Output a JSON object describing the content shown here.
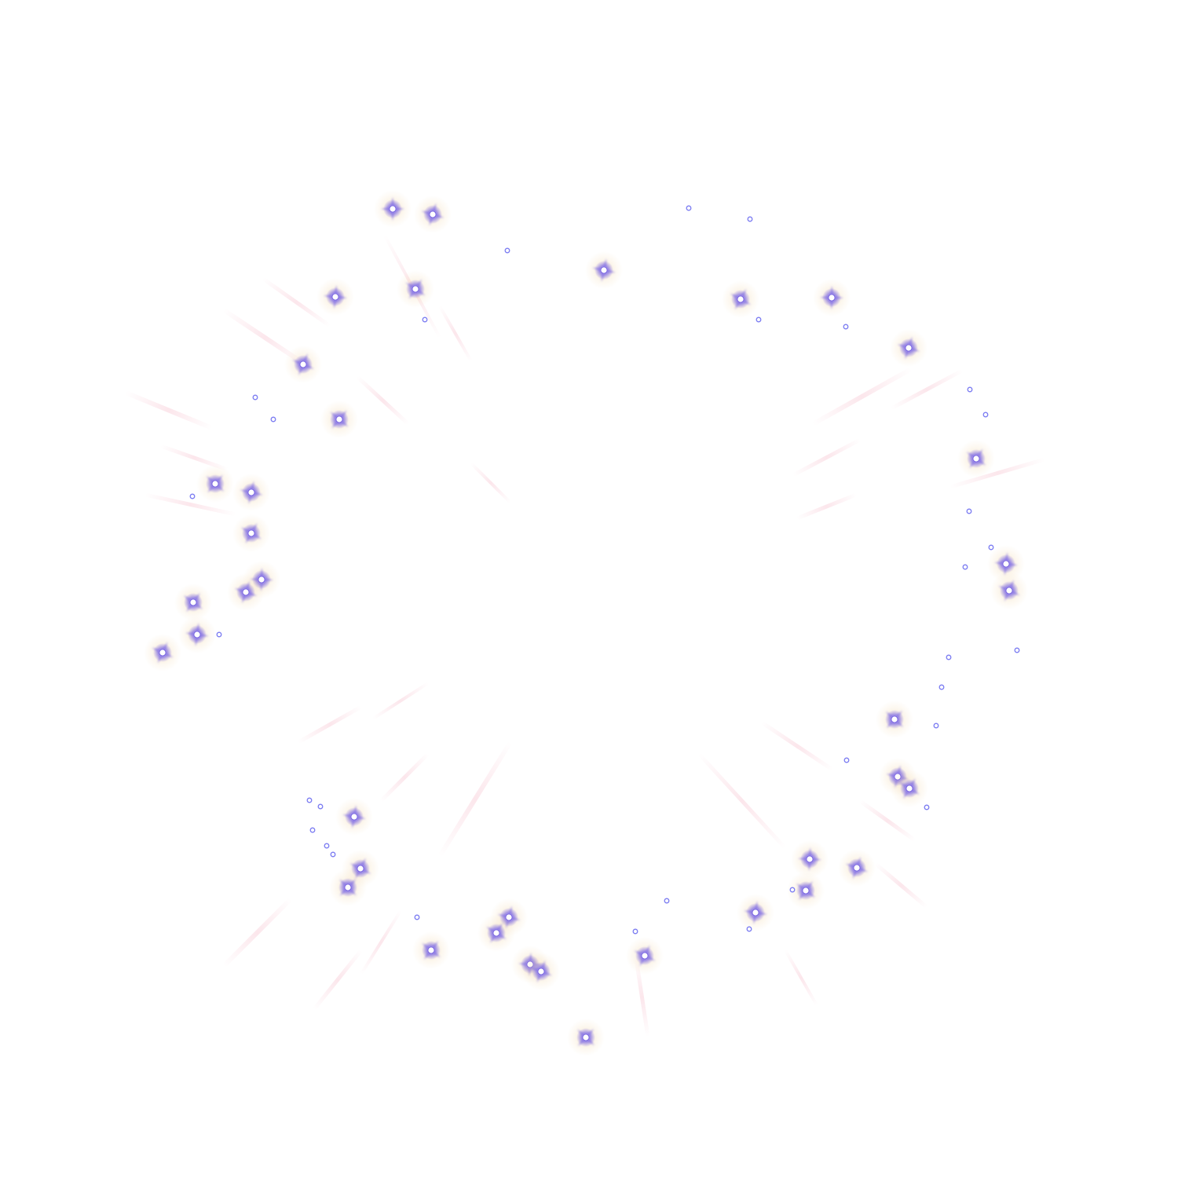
{
  "image": {
    "background_color": "#ffffff",
    "sparkle_core_color": "#ffffff",
    "sparkle_glow_color": "#7a66e0",
    "sparkle_halo_color": "#f2d6a8",
    "dot_color": "#7b7cf2",
    "streak_color": "#f6b9c8"
  }
}
